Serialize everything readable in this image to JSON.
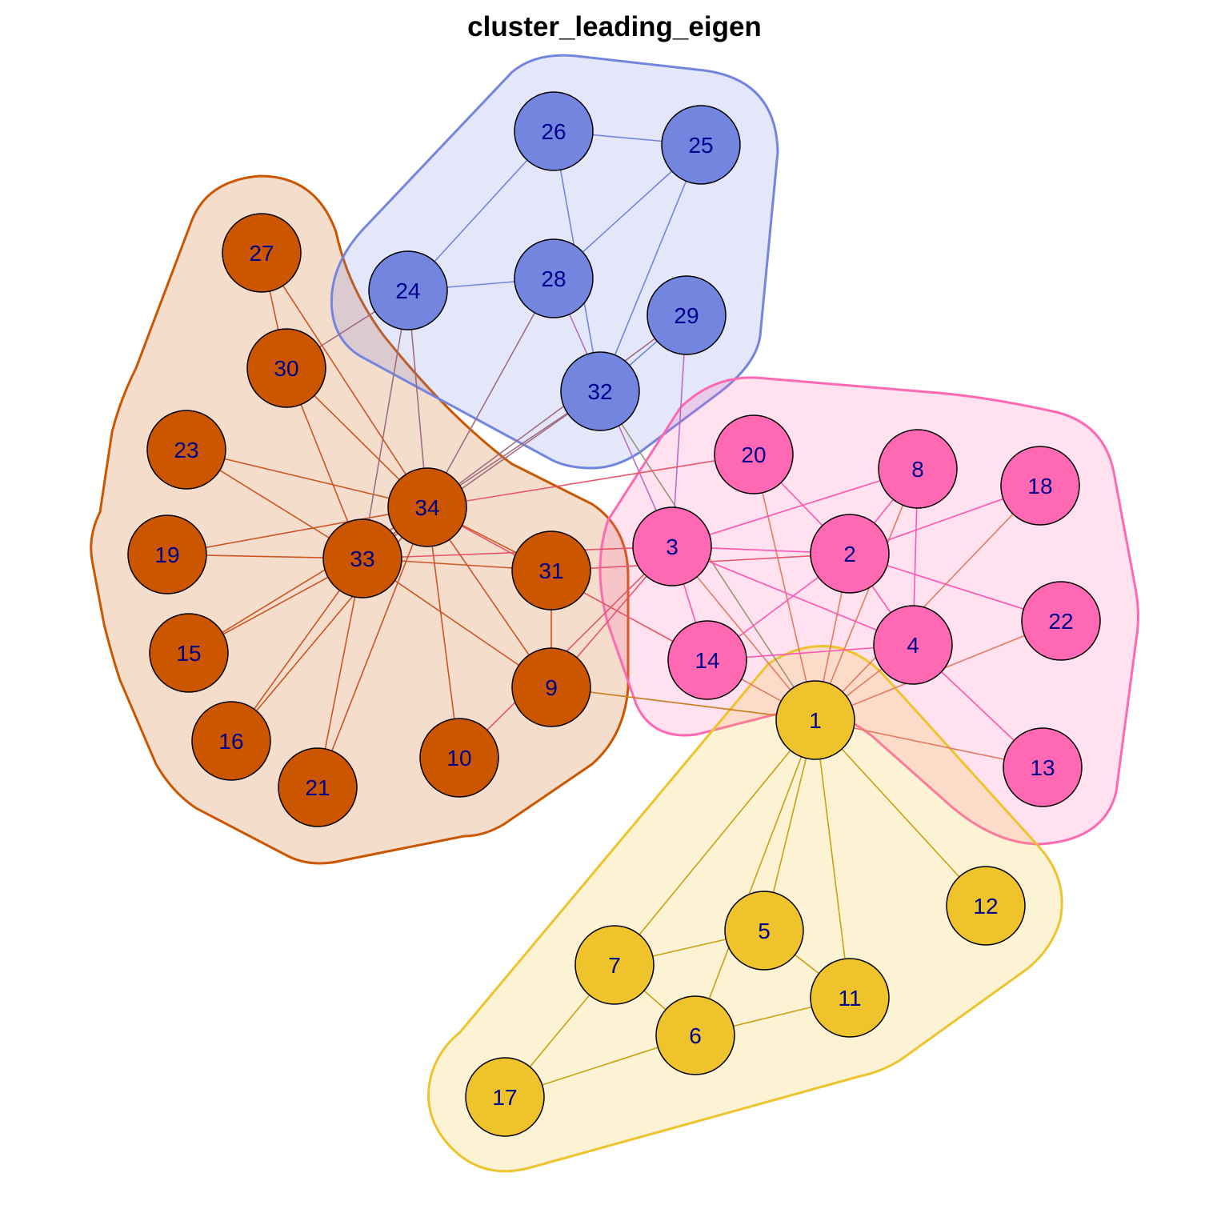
{
  "title": "cluster_leading_eigen",
  "clusters": [
    {
      "name": "orange",
      "fill": "#f5dcc9",
      "stroke": "#cc5500",
      "edge": "#cc5522",
      "node_fill": "#cc5500",
      "members": [
        "27",
        "30",
        "23",
        "19",
        "15",
        "16",
        "21",
        "10",
        "9",
        "31",
        "33",
        "34"
      ]
    },
    {
      "name": "blue",
      "fill": "#e1e6f7",
      "stroke": "#7385df",
      "edge": "#7385df",
      "node_fill": "#7385df",
      "members": [
        "26",
        "25",
        "24",
        "28",
        "29",
        "32"
      ]
    },
    {
      "name": "pink",
      "fill": "#fde0f0",
      "stroke": "#ff69b4",
      "edge": "#ff55b0",
      "node_fill": "#ff69b4",
      "members": [
        "20",
        "8",
        "18",
        "3",
        "2",
        "22",
        "14",
        "4",
        "13"
      ]
    },
    {
      "name": "yellow",
      "fill": "#fbf3d6",
      "stroke": "#eec32c",
      "edge": "#c8a010",
      "node_fill": "#eec32c",
      "members": [
        "1",
        "12",
        "5",
        "7",
        "11",
        "6",
        "17"
      ]
    }
  ],
  "nodes": [
    "1",
    "2",
    "3",
    "4",
    "5",
    "6",
    "7",
    "8",
    "9",
    "10",
    "11",
    "12",
    "13",
    "14",
    "15",
    "16",
    "17",
    "18",
    "19",
    "20",
    "21",
    "22",
    "23",
    "24",
    "25",
    "26",
    "27",
    "28",
    "29",
    "30",
    "31",
    "32",
    "33",
    "34"
  ],
  "edges": [
    [
      "1",
      "2"
    ],
    [
      "1",
      "3"
    ],
    [
      "1",
      "4"
    ],
    [
      "1",
      "5"
    ],
    [
      "1",
      "6"
    ],
    [
      "1",
      "7"
    ],
    [
      "1",
      "8"
    ],
    [
      "1",
      "9"
    ],
    [
      "1",
      "11"
    ],
    [
      "1",
      "12"
    ],
    [
      "1",
      "13"
    ],
    [
      "1",
      "14"
    ],
    [
      "1",
      "18"
    ],
    [
      "1",
      "20"
    ],
    [
      "1",
      "22"
    ],
    [
      "1",
      "32"
    ],
    [
      "2",
      "3"
    ],
    [
      "2",
      "4"
    ],
    [
      "2",
      "8"
    ],
    [
      "2",
      "14"
    ],
    [
      "2",
      "18"
    ],
    [
      "2",
      "20"
    ],
    [
      "2",
      "22"
    ],
    [
      "2",
      "31"
    ],
    [
      "3",
      "4"
    ],
    [
      "3",
      "8"
    ],
    [
      "3",
      "9"
    ],
    [
      "3",
      "10"
    ],
    [
      "3",
      "14"
    ],
    [
      "3",
      "28"
    ],
    [
      "3",
      "29"
    ],
    [
      "3",
      "33"
    ],
    [
      "4",
      "8"
    ],
    [
      "4",
      "13"
    ],
    [
      "4",
      "14"
    ],
    [
      "5",
      "7"
    ],
    [
      "5",
      "11"
    ],
    [
      "6",
      "7"
    ],
    [
      "6",
      "11"
    ],
    [
      "6",
      "17"
    ],
    [
      "7",
      "17"
    ],
    [
      "9",
      "31"
    ],
    [
      "9",
      "33"
    ],
    [
      "9",
      "34"
    ],
    [
      "10",
      "34"
    ],
    [
      "14",
      "34"
    ],
    [
      "15",
      "33"
    ],
    [
      "15",
      "34"
    ],
    [
      "16",
      "33"
    ],
    [
      "16",
      "34"
    ],
    [
      "19",
      "33"
    ],
    [
      "19",
      "34"
    ],
    [
      "20",
      "34"
    ],
    [
      "21",
      "33"
    ],
    [
      "21",
      "34"
    ],
    [
      "23",
      "33"
    ],
    [
      "23",
      "34"
    ],
    [
      "24",
      "26"
    ],
    [
      "24",
      "28"
    ],
    [
      "24",
      "30"
    ],
    [
      "24",
      "33"
    ],
    [
      "24",
      "34"
    ],
    [
      "25",
      "26"
    ],
    [
      "25",
      "28"
    ],
    [
      "25",
      "32"
    ],
    [
      "26",
      "32"
    ],
    [
      "27",
      "30"
    ],
    [
      "27",
      "34"
    ],
    [
      "28",
      "34"
    ],
    [
      "29",
      "32"
    ],
    [
      "29",
      "34"
    ],
    [
      "30",
      "33"
    ],
    [
      "30",
      "34"
    ],
    [
      "31",
      "33"
    ],
    [
      "31",
      "34"
    ],
    [
      "32",
      "33"
    ],
    [
      "32",
      "34"
    ],
    [
      "33",
      "34"
    ]
  ]
}
